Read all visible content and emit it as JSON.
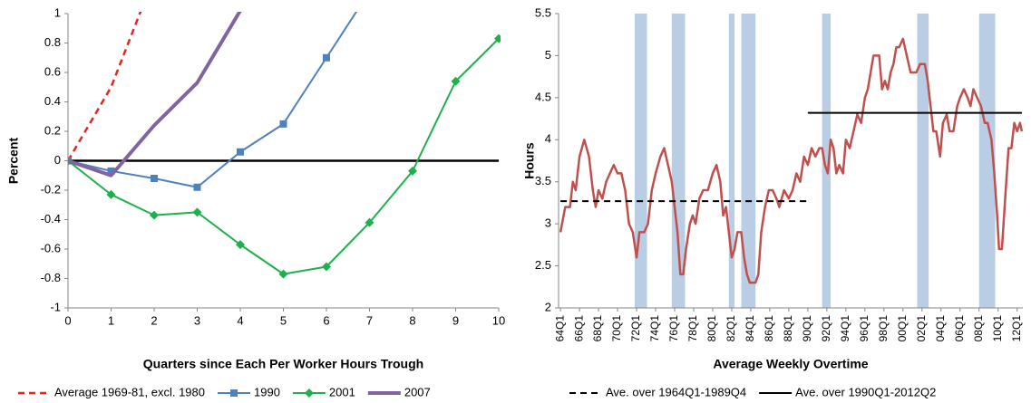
{
  "chart_data": [
    {
      "type": "line",
      "xlabel": "Quarters since Each Per Worker Hours Trough",
      "ylabel": "Percent",
      "x": [
        0,
        1,
        2,
        3,
        4,
        5,
        6,
        7,
        8,
        9,
        10
      ],
      "xlim": [
        0,
        10
      ],
      "xticks": [
        0,
        1,
        2,
        3,
        4,
        5,
        6,
        7,
        8,
        9,
        10
      ],
      "ylim": [
        -1,
        1
      ],
      "yticks": [
        -1,
        -0.8,
        -0.6,
        -0.4,
        -0.2,
        0,
        0.2,
        0.4,
        0.6,
        0.8,
        1
      ],
      "grid": false,
      "series": [
        {
          "name": "Average 1969-81, excl. 1980",
          "color": "#e3261f",
          "dash": true,
          "marker": "none",
          "width": 2.5,
          "values": [
            0,
            0.5,
            1.25,
            null,
            null,
            null,
            null,
            null,
            null,
            null,
            null
          ]
        },
        {
          "name": "1990",
          "color": "#4f81bd",
          "dash": false,
          "marker": "square",
          "width": 2,
          "values": [
            0,
            -0.07,
            -0.12,
            -0.18,
            0.06,
            0.25,
            0.7,
            1.15,
            null,
            null,
            null
          ]
        },
        {
          "name": "2001",
          "color": "#1eb04c",
          "dash": false,
          "marker": "diamond",
          "width": 2,
          "values": [
            0,
            -0.23,
            -0.37,
            -0.35,
            -0.57,
            -0.77,
            -0.72,
            -0.42,
            -0.07,
            0.54,
            0.83
          ]
        },
        {
          "name": "2007",
          "color": "#8064a2",
          "dash": false,
          "marker": "none",
          "width": 4,
          "values": [
            0,
            -0.1,
            0.24,
            0.53,
            1.02,
            null,
            null,
            null,
            null,
            null,
            null
          ]
        }
      ]
    },
    {
      "type": "line",
      "xlabel": "Average Weekly Overtime",
      "ylabel": "Hours",
      "xlim": [
        1963.8,
        2012.6
      ],
      "xticks": [
        {
          "value": 1964,
          "label": "64Q1"
        },
        {
          "value": 1966,
          "label": "66Q1"
        },
        {
          "value": 1968,
          "label": "68Q1"
        },
        {
          "value": 1970,
          "label": "70Q1"
        },
        {
          "value": 1972,
          "label": "72Q1"
        },
        {
          "value": 1974,
          "label": "74Q1"
        },
        {
          "value": 1976,
          "label": "76Q1"
        },
        {
          "value": 1978,
          "label": "78Q1"
        },
        {
          "value": 1980,
          "label": "80Q1"
        },
        {
          "value": 1982,
          "label": "82Q1"
        },
        {
          "value": 1984,
          "label": "84Q1"
        },
        {
          "value": 1986,
          "label": "86Q1"
        },
        {
          "value": 1988,
          "label": "88Q1"
        },
        {
          "value": 1990,
          "label": "90Q1"
        },
        {
          "value": 1992,
          "label": "92Q1"
        },
        {
          "value": 1994,
          "label": "94Q1"
        },
        {
          "value": 1996,
          "label": "96Q1"
        },
        {
          "value": 1998,
          "label": "98Q1"
        },
        {
          "value": 2000,
          "label": "00Q1"
        },
        {
          "value": 2002,
          "label": "02Q1"
        },
        {
          "value": 2004,
          "label": "04Q1"
        },
        {
          "value": 2006,
          "label": "06Q1"
        },
        {
          "value": 2008,
          "label": "08Q1"
        },
        {
          "value": 2010,
          "label": "10Q1"
        },
        {
          "value": 2012,
          "label": "12Q1"
        }
      ],
      "ylim": [
        2,
        5.5
      ],
      "yticks": [
        2,
        2.5,
        3,
        3.5,
        4,
        4.5,
        5,
        5.5
      ],
      "grid": false,
      "shaded_color": "#b9cde5",
      "shaded_ranges": [
        [
          1971.8,
          1973.1
        ],
        [
          1975.7,
          1977.1
        ],
        [
          1981.7,
          1982.3
        ],
        [
          1983.0,
          1984.5
        ],
        [
          1991.5,
          1992.4
        ],
        [
          2001.5,
          2002.7
        ],
        [
          2008.0,
          2009.7
        ]
      ],
      "unlabeled_series": [
        {
          "color": "#c0504d",
          "width": 2.5,
          "x": [
            1964.0,
            1964.5,
            1965.0,
            1965.3,
            1965.6,
            1966.0,
            1966.5,
            1967.0,
            1967.4,
            1967.7,
            1968.0,
            1968.4,
            1968.8,
            1969.2,
            1969.6,
            1970.0,
            1970.4,
            1970.8,
            1971.2,
            1971.6,
            1972.0,
            1972.3,
            1972.8,
            1973.2,
            1973.6,
            1974.0,
            1974.5,
            1974.9,
            1975.3,
            1975.7,
            1976.0,
            1976.3,
            1976.6,
            1976.9,
            1977.2,
            1977.6,
            1977.9,
            1978.2,
            1978.6,
            1979.0,
            1979.5,
            1980.0,
            1980.4,
            1980.8,
            1981.1,
            1981.4,
            1981.7,
            1982.0,
            1982.3,
            1982.6,
            1983.0,
            1983.3,
            1983.6,
            1983.9,
            1984.5,
            1984.8,
            1985.1,
            1985.5,
            1985.9,
            1986.3,
            1986.7,
            1987.0,
            1987.5,
            1988.0,
            1988.4,
            1988.8,
            1989.2,
            1989.6,
            1990.0,
            1990.4,
            1990.8,
            1991.2,
            1991.5,
            1991.8,
            1992.1,
            1992.4,
            1992.7,
            1993.0,
            1993.3,
            1993.7,
            1994.0,
            1994.4,
            1994.8,
            1995.2,
            1995.6,
            1996.0,
            1996.3,
            1996.6,
            1996.9,
            1997.5,
            1997.8,
            1998.1,
            1998.4,
            1998.7,
            1999.0,
            1999.3,
            1999.6,
            2000.0,
            2000.4,
            2000.8,
            2001.4,
            2001.8,
            2002.3,
            2002.6,
            2002.9,
            2003.2,
            2003.5,
            2003.9,
            2004.2,
            2004.6,
            2004.9,
            2005.3,
            2005.7,
            2006.0,
            2006.4,
            2006.8,
            2007.1,
            2007.4,
            2007.8,
            2008.2,
            2008.6,
            2008.9,
            2009.3,
            2009.6,
            2009.9,
            2010.1,
            2010.4,
            2010.8,
            2011.1,
            2011.4,
            2011.7,
            2012.0,
            2012.3,
            2012.5
          ],
          "values": [
            2.9,
            3.2,
            3.2,
            3.5,
            3.4,
            3.8,
            4.0,
            3.8,
            3.4,
            3.2,
            3.4,
            3.3,
            3.5,
            3.6,
            3.7,
            3.6,
            3.6,
            3.4,
            3.0,
            2.9,
            2.6,
            2.9,
            2.9,
            3.0,
            3.4,
            3.6,
            3.8,
            3.9,
            3.7,
            3.5,
            3.2,
            2.9,
            2.4,
            2.4,
            2.7,
            3.0,
            3.1,
            3.0,
            3.3,
            3.4,
            3.4,
            3.6,
            3.7,
            3.5,
            3.1,
            3.2,
            2.9,
            2.6,
            2.7,
            2.9,
            2.9,
            2.6,
            2.4,
            2.3,
            2.3,
            2.4,
            2.9,
            3.2,
            3.4,
            3.4,
            3.3,
            3.2,
            3.4,
            3.3,
            3.4,
            3.6,
            3.5,
            3.8,
            3.7,
            3.9,
            3.8,
            3.9,
            3.9,
            3.7,
            3.6,
            4.0,
            3.9,
            3.6,
            3.7,
            3.6,
            4.0,
            3.9,
            4.1,
            4.3,
            4.2,
            4.5,
            4.6,
            4.8,
            5.0,
            5.0,
            4.6,
            4.7,
            4.6,
            4.8,
            4.9,
            5.1,
            5.1,
            5.2,
            5.0,
            4.8,
            4.8,
            4.9,
            4.9,
            4.7,
            4.4,
            4.1,
            4.1,
            3.8,
            4.2,
            4.3,
            4.1,
            4.1,
            4.4,
            4.5,
            4.6,
            4.5,
            4.4,
            4.6,
            4.5,
            4.4,
            4.2,
            4.2,
            4.0,
            3.6,
            3.1,
            2.7,
            2.7,
            3.4,
            3.9,
            3.9,
            4.2,
            4.1,
            4.2,
            4.1
          ]
        }
      ],
      "series": [
        {
          "name": "Ave. over 1964Q1-1989Q4",
          "color": "#000000",
          "dash": true,
          "marker": "none",
          "width": 2,
          "x": [
            1964,
            1990
          ],
          "values": [
            3.27,
            3.27
          ]
        },
        {
          "name": "Ave. over 1990Q1-2012Q2",
          "color": "#000000",
          "dash": false,
          "marker": "none",
          "width": 2,
          "x": [
            1990,
            2012.5
          ],
          "values": [
            4.32,
            4.32
          ]
        }
      ]
    }
  ]
}
